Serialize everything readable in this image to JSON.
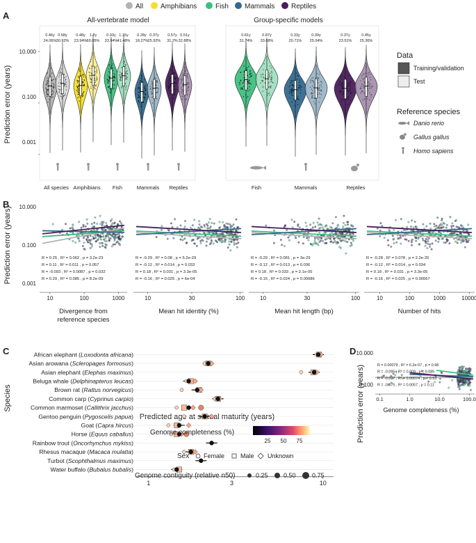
{
  "colors": {
    "All": "#b3b3b3",
    "Amphibians": "#f5df2b",
    "Fish": "#3fbf7f",
    "Mammals": "#336a8f",
    "Reptiles": "#4a1d5c"
  },
  "legend_top": [
    "All",
    "Amphibians",
    "Fish",
    "Mammals",
    "Reptiles"
  ],
  "panel_letters": [
    "A",
    "B",
    "C",
    "D"
  ],
  "chart_data": [
    {
      "id": "A-left",
      "type": "violin",
      "title": "All-vertebrate model",
      "ylabel": "Prediction error (years)",
      "yscale": "log",
      "ylim": [
        0.0001,
        100
      ],
      "yticks": [
        "0.001",
        "0.100",
        "10.000"
      ],
      "groups": [
        {
          "label": "All species",
          "class": "All",
          "train_median": 0.46,
          "test_median": 0.58,
          "train_stat": [
            "0.46y",
            "24.06%"
          ],
          "test_stat": [
            "0.58y",
            "30.92%"
          ]
        },
        {
          "label": "Amphibians",
          "class": "Amphibians",
          "train_median": 0.48,
          "test_median": 1.2,
          "train_stat": [
            "0.48y",
            "23.94%"
          ],
          "test_stat": [
            "1.2y",
            "60.05%"
          ]
        },
        {
          "label": "Fish",
          "class": "Fish",
          "train_median": 0.93,
          "test_median": 1.15,
          "train_stat": [
            "0.93y",
            "33.94%"
          ],
          "test_stat": [
            "1.15y",
            "41.48%"
          ]
        },
        {
          "label": "Mammals",
          "class": "Mammals",
          "train_median": 0.28,
          "test_median": 0.37,
          "train_stat": [
            "0.28y",
            "18.27%"
          ],
          "test_stat": [
            "0.37y",
            "25.92%"
          ]
        },
        {
          "label": "Reptiles",
          "class": "Reptiles",
          "train_median": 0.57,
          "test_median": 0.51,
          "train_stat": [
            "0.57y",
            "31.2%"
          ],
          "test_stat": [
            "0.51y",
            "32.88%"
          ]
        }
      ]
    },
    {
      "id": "A-right",
      "type": "violin",
      "title": "Group-specific models",
      "yscale": "log",
      "ylim": [
        0.0001,
        100
      ],
      "groups": [
        {
          "label": "Fish",
          "class": "Fish",
          "train_median": 0.81,
          "test_median": 0.87,
          "train_stat": [
            "0.81y",
            "31.74%"
          ],
          "test_stat": [
            "0.87y",
            "33.68%"
          ]
        },
        {
          "label": "Mammals",
          "class": "Mammals",
          "train_median": 0.33,
          "test_median": 0.39,
          "train_stat": [
            "0.33y",
            "20.71%"
          ],
          "test_stat": [
            "0.39y",
            "25.04%"
          ]
        },
        {
          "label": "Reptiles",
          "class": "Reptiles",
          "train_median": 0.37,
          "test_median": 0.45,
          "train_stat": [
            "0.37y",
            "23.51%"
          ],
          "test_stat": [
            "0.45y",
            "25.36%"
          ]
        }
      ]
    },
    {
      "id": "B",
      "type": "scatter",
      "ylabel": "Prediction error (years)",
      "yscale": "log",
      "yticks": [
        "0.001",
        "0.100",
        "10.000"
      ],
      "panels": [
        {
          "xlabel": "Divergence from reference species",
          "xscale": "log",
          "xlim": [
            5,
            1800
          ],
          "xticks": [
            "10",
            "100",
            "1000"
          ],
          "stats": [
            {
              "class": "All",
              "text": "R = 0.25 , R² = 0.062 , p = 3.2e-23"
            },
            {
              "class": "Fish",
              "text": "R = 0.11 , R² = 0.011 , p = 0.057"
            },
            {
              "class": "Mammals",
              "text": "R = -0.093 , R² = 0.0087 , p = 0.032"
            },
            {
              "class": "Reptiles",
              "text": "R = 0.29 , R² = 0.085 , p = 8.2e-09"
            }
          ]
        },
        {
          "xlabel": "Mean hit identity (%)",
          "xscale": "log",
          "xlim": [
            7,
            110
          ],
          "xticks": [
            "10",
            "30",
            "100"
          ],
          "stats": [
            {
              "class": "All",
              "text": "R = -0.29 , R² = 0.08 , p = 5.2e-29"
            },
            {
              "class": "Fish",
              "text": "R = -0.12 , R² = 0.014 , p = 0.033"
            },
            {
              "class": "Mammals",
              "text": "R = 0.18 , R² = 0.031 , p = 3.3e-05"
            },
            {
              "class": "Reptiles",
              "text": "R = -0.16 , R² = 0.025 , p = 6e-04"
            }
          ]
        },
        {
          "xlabel": "Mean hit length (bp)",
          "xscale": "log",
          "xlim": [
            7,
            110
          ],
          "xticks": [
            "10",
            "30",
            "100"
          ],
          "stats": [
            {
              "class": "All",
              "text": "R = -0.29 , R² = 0.081 , p = 3e-29"
            },
            {
              "class": "Fish",
              "text": "R = -0.12 , R² = 0.013 , p = 0.036"
            },
            {
              "class": "Mammals",
              "text": "R = 0.18 , R² = 0.033 , p = 2.1e-05"
            },
            {
              "class": "Reptiles",
              "text": "R = -0.15 , R² = 0.024 , p = 0.00086"
            }
          ]
        },
        {
          "xlabel": "Number of hits",
          "xscale": "log",
          "xlim": [
            3,
            15000
          ],
          "xticks": [
            "10",
            "100",
            "1000",
            "10000"
          ],
          "stats": [
            {
              "class": "All",
              "text": "R = -0.28 , R² = 0.078 , p = 2.2e-25"
            },
            {
              "class": "Fish",
              "text": "R = -0.12 , R² = 0.014 , p = 0.034"
            },
            {
              "class": "Mammals",
              "text": "R = 0.18 , R² = 0.031 , p = 3.3e-05"
            },
            {
              "class": "Reptiles",
              "text": "R = -0.16 , R² = 0.025 , p = 0.00067"
            }
          ]
        }
      ]
    },
    {
      "id": "C",
      "type": "dot",
      "xlabel": "Predicted age at sexual maturity (years)",
      "ylabel": "Species",
      "xscale": "log",
      "xlim": [
        0.85,
        11.5
      ],
      "xticks": [
        "1",
        "3",
        "10"
      ],
      "species": [
        {
          "common": "African elephant",
          "latin": "Loxodonta africana",
          "values": [
            9.2,
            9.5,
            9.7
          ],
          "true": 9.4
        },
        {
          "common": "Asian arowana",
          "latin": "Scleropages formosus",
          "values": [
            2.1,
            2.2,
            2.3
          ],
          "true": 2.2
        },
        {
          "common": "Asian elephant",
          "latin": "Elephas maximus",
          "values": [
            7.5,
            8.8,
            9.2
          ],
          "true": 8.9
        },
        {
          "common": "Beluga whale",
          "latin": "Delphinapterus leucas",
          "values": [
            1.65,
            1.75,
            1.85
          ],
          "true": 1.7
        },
        {
          "common": "Brown rat",
          "latin": "Rattus norvegicus",
          "values": [
            1.55,
            1.95,
            2.0
          ],
          "true": 1.9
        },
        {
          "common": "Common carp",
          "latin": "Cyprinus carpio",
          "values": [
            2.4,
            2.5,
            2.55
          ],
          "true": 2.5
        },
        {
          "common": "Common marmoset",
          "latin": "Callithrix jacchus",
          "values": [
            1.45,
            1.6,
            1.8,
            2.0
          ],
          "true": 1.7
        },
        {
          "common": "Gentoo penguin",
          "latin": "Pygoscelis papua",
          "values": [
            1.6,
            2.1,
            2.3
          ],
          "true": 2.1
        },
        {
          "common": "Goat",
          "latin": "Capra hircus",
          "values": [
            1.3,
            1.45,
            1.7
          ],
          "true": 1.5
        },
        {
          "common": "Horse",
          "latin": "Equus caballus",
          "values": [
            1.35,
            1.45,
            1.55,
            1.65
          ],
          "true": 1.5
        },
        {
          "common": "Rainbow trout",
          "latin": "Oncorhynchus mykiss",
          "values": [
            2.3
          ],
          "true": 2.3
        },
        {
          "common": "Rhesus macaque",
          "latin": "Macaca mulatta",
          "values": [
            1.6,
            1.75,
            1.85
          ],
          "true": 1.75
        },
        {
          "common": "Turbot",
          "latin": "Scophthalmus maximus",
          "values": [
            2.0
          ],
          "true": 2.0
        },
        {
          "common": "Water buffalo",
          "latin": "Bubalus bubalis",
          "values": [
            1.4,
            1.5
          ],
          "true": 1.45
        }
      ]
    },
    {
      "id": "D",
      "type": "scatter",
      "xlabel": "Genome completeness (%)",
      "ylabel": "Prediction error (years)",
      "xscale": "log",
      "xlim": [
        0.07,
        150
      ],
      "xticks": [
        "0.1",
        "1.0",
        "10.0",
        "100.0"
      ],
      "yticks": [
        "0.100",
        "10.000"
      ],
      "stats": [
        {
          "class": "All",
          "text": "R = 0.00079 , R² = 6.2e-07 , p = 0.98"
        },
        {
          "class": "Fish",
          "text": "R = -0.095 , R² = 0.009 , p = 0.085"
        },
        {
          "class": "Mammals",
          "text": "R = -0.027 , R² = 0.00074 , p = 0.53"
        },
        {
          "class": "Reptiles",
          "text": "R = -0.075 , R² = 0.0057 , p = 0.11"
        }
      ]
    }
  ],
  "legend_data": {
    "title": "Data",
    "items": [
      "Training/validation",
      "Test"
    ]
  },
  "legend_ref": {
    "title": "Reference species",
    "items": [
      "Danio rerio",
      "Gallus gallus",
      "Homo sapiens"
    ]
  },
  "legend_completeness": {
    "title": "Genome completeness (%)",
    "ticks": [
      "25",
      "50",
      "75"
    ]
  },
  "legend_sex": {
    "title": "Sex",
    "items": [
      "Female",
      "Male",
      "Unknown"
    ]
  },
  "legend_contiguity": {
    "title": "Genome contiguity (relative n50)",
    "ticks": [
      "0.25",
      "0.50",
      "0.75"
    ]
  }
}
